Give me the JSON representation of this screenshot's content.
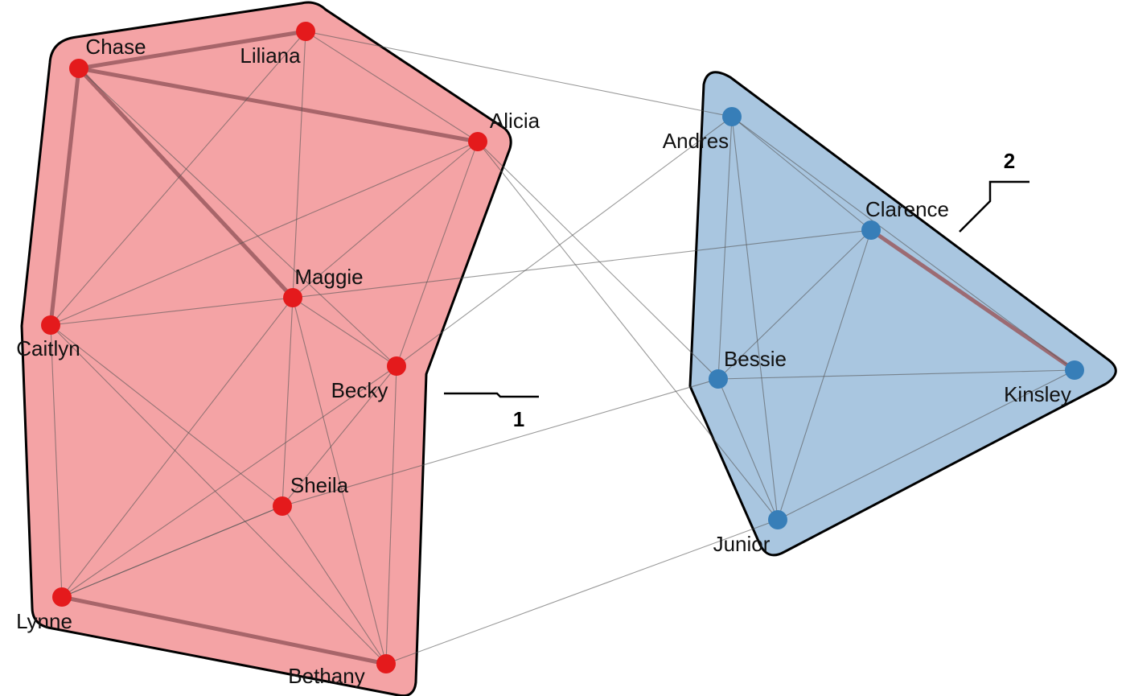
{
  "groups": [
    {
      "id": "g1",
      "label": "1",
      "fill": "#f4a3a5",
      "node_color": "#e41a1c"
    },
    {
      "id": "g2",
      "label": "2",
      "fill": "#a9c6e0",
      "node_color": "#377eb8"
    }
  ],
  "nodes": [
    {
      "id": "chase",
      "name": "Chase",
      "group": "g1"
    },
    {
      "id": "liliana",
      "name": "Liliana",
      "group": "g1"
    },
    {
      "id": "alicia",
      "name": "Alicia",
      "group": "g1"
    },
    {
      "id": "maggie",
      "name": "Maggie",
      "group": "g1"
    },
    {
      "id": "caitlyn",
      "name": "Caitlyn",
      "group": "g1"
    },
    {
      "id": "becky",
      "name": "Becky",
      "group": "g1"
    },
    {
      "id": "sheila",
      "name": "Sheila",
      "group": "g1"
    },
    {
      "id": "lynne",
      "name": "Lynne",
      "group": "g1"
    },
    {
      "id": "bethany",
      "name": "Bethany",
      "group": "g1"
    },
    {
      "id": "andres",
      "name": "Andres",
      "group": "g2"
    },
    {
      "id": "clarence",
      "name": "Clarence",
      "group": "g2"
    },
    {
      "id": "bessie",
      "name": "Bessie",
      "group": "g2"
    },
    {
      "id": "kinsley",
      "name": "Kinsley",
      "group": "g2"
    },
    {
      "id": "junior",
      "name": "Junior",
      "group": "g2"
    }
  ],
  "edges": [
    {
      "source": "chase",
      "target": "liliana",
      "strong": true
    },
    {
      "source": "chase",
      "target": "alicia",
      "strong": true
    },
    {
      "source": "chase",
      "target": "maggie",
      "strong": true
    },
    {
      "source": "chase",
      "target": "caitlyn",
      "strong": true
    },
    {
      "source": "lynne",
      "target": "bethany",
      "strong": true
    },
    {
      "source": "clarence",
      "target": "kinsley",
      "strong": true
    },
    {
      "source": "chase",
      "target": "becky",
      "strong": false
    },
    {
      "source": "liliana",
      "target": "alicia",
      "strong": false
    },
    {
      "source": "liliana",
      "target": "maggie",
      "strong": false
    },
    {
      "source": "liliana",
      "target": "caitlyn",
      "strong": false
    },
    {
      "source": "liliana",
      "target": "andres",
      "strong": false
    },
    {
      "source": "alicia",
      "target": "maggie",
      "strong": false
    },
    {
      "source": "alicia",
      "target": "caitlyn",
      "strong": false
    },
    {
      "source": "alicia",
      "target": "becky",
      "strong": false
    },
    {
      "source": "alicia",
      "target": "bessie",
      "strong": false
    },
    {
      "source": "alicia",
      "target": "junior",
      "strong": false
    },
    {
      "source": "maggie",
      "target": "caitlyn",
      "strong": false
    },
    {
      "source": "maggie",
      "target": "becky",
      "strong": false
    },
    {
      "source": "maggie",
      "target": "sheila",
      "strong": false
    },
    {
      "source": "maggie",
      "target": "lynne",
      "strong": false
    },
    {
      "source": "maggie",
      "target": "bethany",
      "strong": false
    },
    {
      "source": "maggie",
      "target": "clarence",
      "strong": false
    },
    {
      "source": "caitlyn",
      "target": "lynne",
      "strong": false
    },
    {
      "source": "caitlyn",
      "target": "sheila",
      "strong": false
    },
    {
      "source": "caitlyn",
      "target": "bethany",
      "strong": false
    },
    {
      "source": "becky",
      "target": "sheila",
      "strong": false
    },
    {
      "source": "becky",
      "target": "lynne",
      "strong": false
    },
    {
      "source": "becky",
      "target": "bethany",
      "strong": false
    },
    {
      "source": "becky",
      "target": "andres",
      "strong": false
    },
    {
      "source": "sheila",
      "target": "lynne",
      "strong": false
    },
    {
      "source": "sheila",
      "target": "bethany",
      "strong": false
    },
    {
      "source": "sheila",
      "target": "bessie",
      "strong": false
    },
    {
      "source": "lynne",
      "target": "sheila",
      "strong": false
    },
    {
      "source": "bethany",
      "target": "junior",
      "strong": false
    },
    {
      "source": "andres",
      "target": "clarence",
      "strong": false
    },
    {
      "source": "andres",
      "target": "kinsley",
      "strong": false
    },
    {
      "source": "andres",
      "target": "bessie",
      "strong": false
    },
    {
      "source": "andres",
      "target": "junior",
      "strong": false
    },
    {
      "source": "clarence",
      "target": "bessie",
      "strong": false
    },
    {
      "source": "clarence",
      "target": "junior",
      "strong": false
    },
    {
      "source": "bessie",
      "target": "kinsley",
      "strong": false
    },
    {
      "source": "bessie",
      "target": "junior",
      "strong": false
    },
    {
      "source": "kinsley",
      "target": "junior",
      "strong": false
    }
  ]
}
